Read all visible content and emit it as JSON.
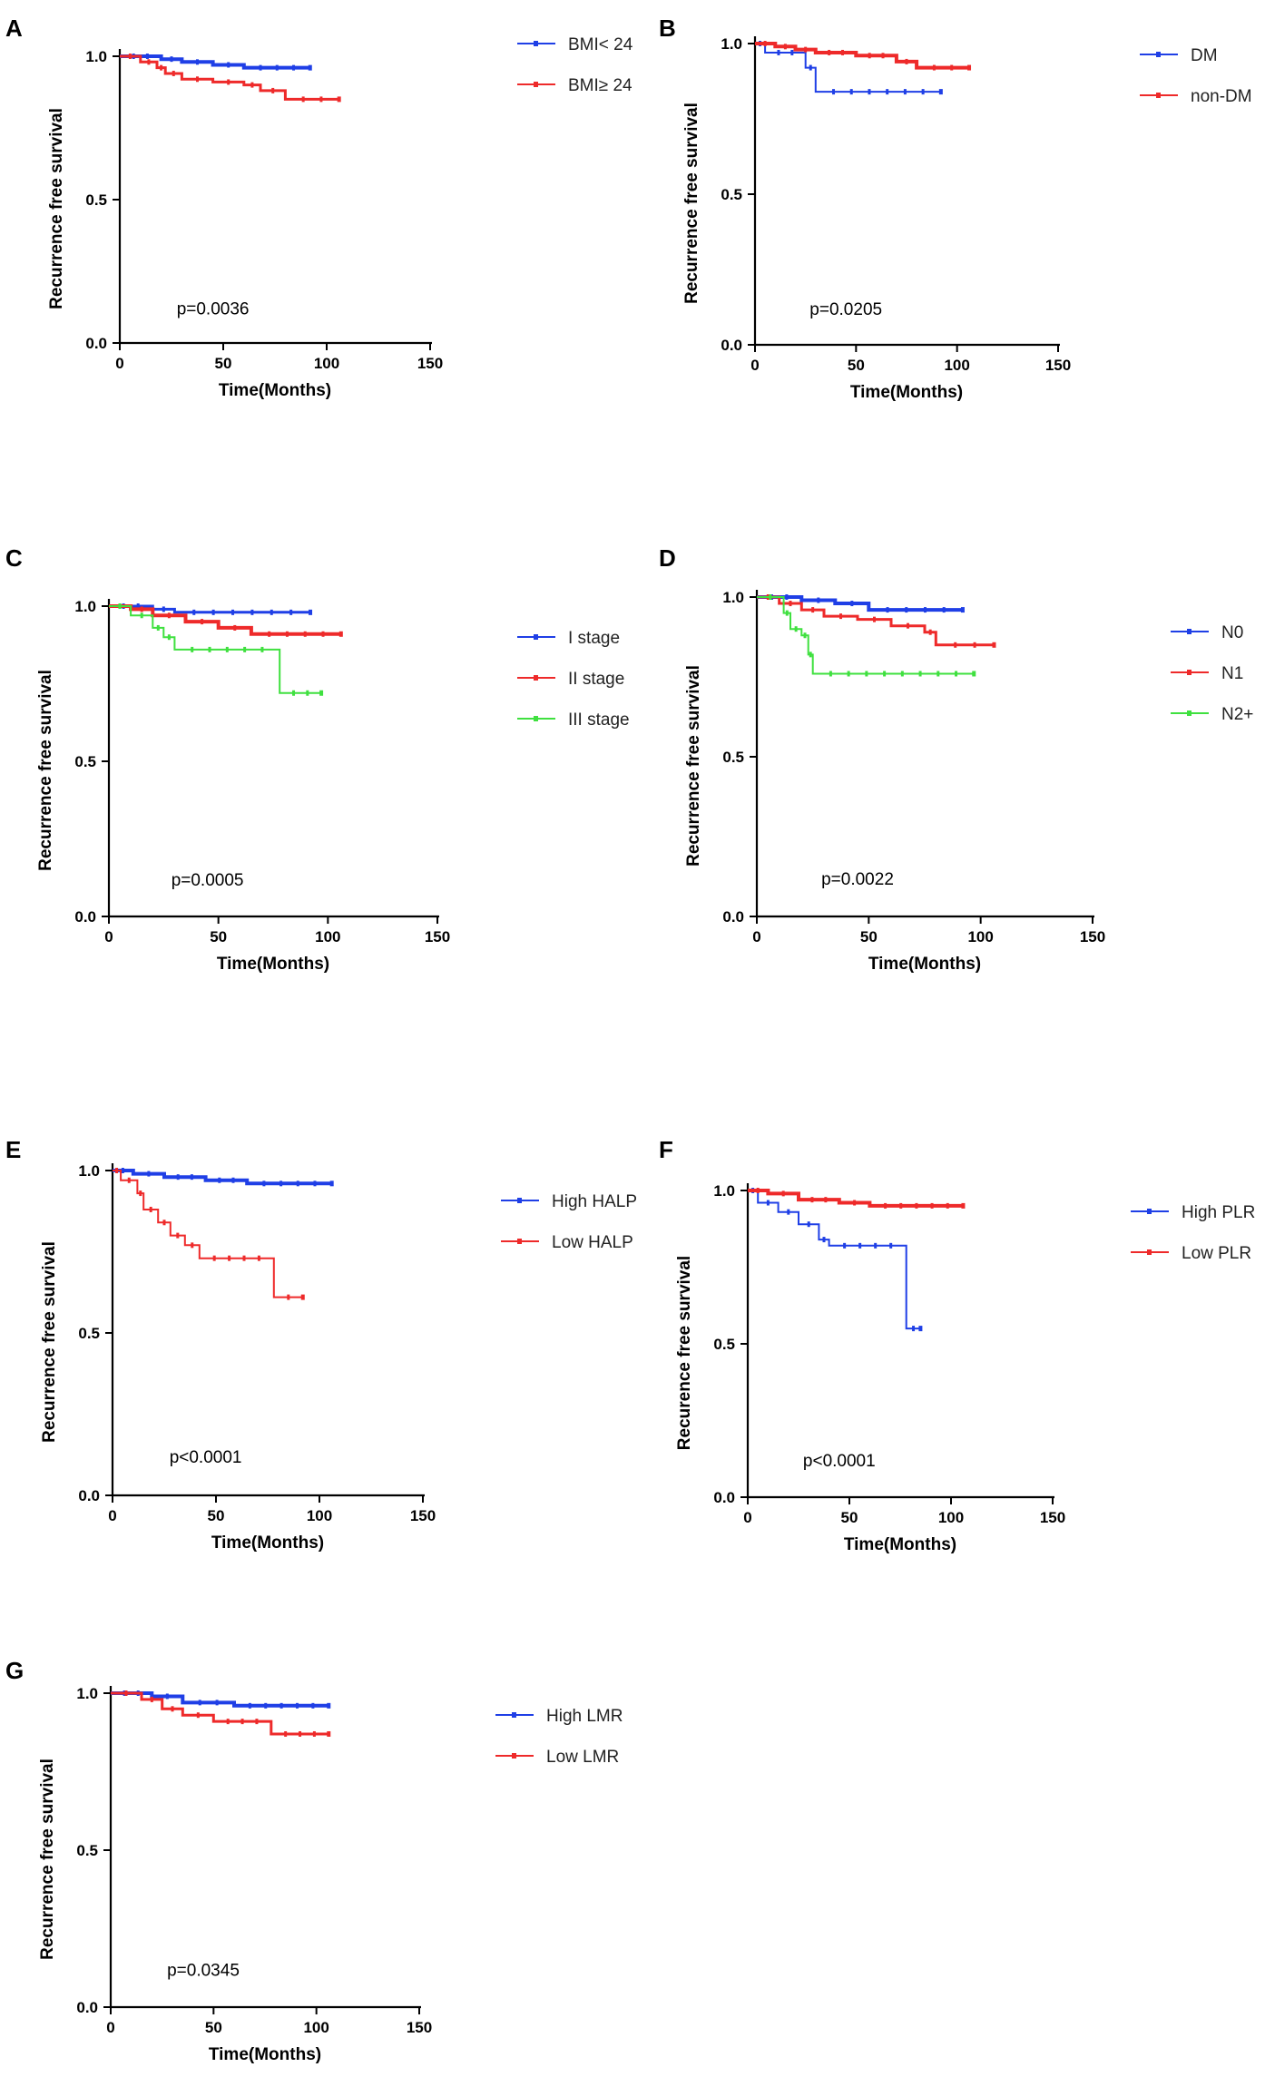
{
  "figure": {
    "xlabel": "Time(Months)",
    "ylabel": "Recurrence free survival"
  },
  "colors": {
    "blue": "#1f3fe6",
    "red": "#ee2a2a",
    "green": "#3fe03f",
    "axis": "#000000"
  },
  "chart_data": [
    {
      "type": "line",
      "panel": "A",
      "title": "A",
      "xlabel": "Time(Months)",
      "ylabel": "Recurrence free survival",
      "xlim": [
        0,
        150
      ],
      "ylim": [
        0,
        1.0
      ],
      "xticks": [
        "0",
        "50",
        "100",
        "150"
      ],
      "yticks": [
        "0.0",
        "0.5",
        "1.0"
      ],
      "p_value": "p=0.0036",
      "legend_position": "right",
      "series": [
        {
          "name": "BMI< 24",
          "color": "#1f3fe6",
          "width": 4,
          "x": [
            0,
            20,
            30,
            45,
            60,
            92
          ],
          "y": [
            1.0,
            0.99,
            0.98,
            0.97,
            0.96,
            0.96
          ]
        },
        {
          "name": "BMI≥ 24",
          "color": "#ee2a2a",
          "width": 3,
          "x": [
            0,
            10,
            18,
            22,
            30,
            45,
            60,
            68,
            80,
            106
          ],
          "y": [
            1.0,
            0.98,
            0.96,
            0.94,
            0.92,
            0.91,
            0.9,
            0.88,
            0.85,
            0.85
          ]
        }
      ]
    },
    {
      "type": "line",
      "panel": "B",
      "title": "B",
      "xlabel": "Time(Months)",
      "ylabel": "Recurrence free survival",
      "xlim": [
        0,
        150
      ],
      "ylim": [
        0,
        1.0
      ],
      "xticks": [
        "0",
        "50",
        "100",
        "150"
      ],
      "yticks": [
        "0.0",
        "0.5",
        "1.0"
      ],
      "p_value": "p=0.0205",
      "legend_position": "right",
      "series": [
        {
          "name": "DM",
          "color": "#1f3fe6",
          "width": 2,
          "x": [
            0,
            5,
            25,
            30,
            92
          ],
          "y": [
            1.0,
            0.97,
            0.92,
            0.84,
            0.84
          ]
        },
        {
          "name": "non-DM",
          "color": "#ee2a2a",
          "width": 4,
          "x": [
            0,
            10,
            20,
            30,
            50,
            70,
            80,
            106
          ],
          "y": [
            1.0,
            0.99,
            0.98,
            0.97,
            0.96,
            0.94,
            0.92,
            0.92
          ]
        }
      ]
    },
    {
      "type": "line",
      "panel": "C",
      "title": "C",
      "xlabel": "Time(Months)",
      "ylabel": "Recurrence free survival",
      "xlim": [
        0,
        150
      ],
      "ylim": [
        0,
        1.0
      ],
      "xticks": [
        "0",
        "50",
        "100",
        "150"
      ],
      "yticks": [
        "0.0",
        "0.5",
        "1.0"
      ],
      "p_value": "p=0.0005",
      "legend_position": "right",
      "series": [
        {
          "name": "I stage",
          "color": "#1f3fe6",
          "width": 3,
          "x": [
            0,
            20,
            30,
            92
          ],
          "y": [
            1.0,
            0.99,
            0.98,
            0.98
          ]
        },
        {
          "name": "II stage",
          "color": "#ee2a2a",
          "width": 4,
          "x": [
            0,
            10,
            20,
            35,
            50,
            65,
            106
          ],
          "y": [
            1.0,
            0.99,
            0.97,
            0.95,
            0.93,
            0.91,
            0.91
          ]
        },
        {
          "name": "III stage",
          "color": "#3fe03f",
          "width": 2,
          "x": [
            0,
            10,
            20,
            25,
            30,
            78,
            97
          ],
          "y": [
            1.0,
            0.97,
            0.93,
            0.9,
            0.86,
            0.72,
            0.72
          ]
        }
      ]
    },
    {
      "type": "line",
      "panel": "D",
      "title": "D",
      "xlabel": "Time(Months)",
      "ylabel": "Recurrence free survival",
      "xlim": [
        0,
        150
      ],
      "ylim": [
        0,
        1.0
      ],
      "xticks": [
        "0",
        "50",
        "100",
        "150"
      ],
      "yticks": [
        "0.0",
        "0.5",
        "1.0"
      ],
      "p_value": "p=0.0022",
      "legend_position": "right",
      "series": [
        {
          "name": "N0",
          "color": "#1f3fe6",
          "width": 4,
          "x": [
            0,
            20,
            35,
            50,
            92
          ],
          "y": [
            1.0,
            0.99,
            0.98,
            0.96,
            0.96
          ]
        },
        {
          "name": "N1",
          "color": "#ee2a2a",
          "width": 3,
          "x": [
            0,
            10,
            20,
            30,
            45,
            60,
            75,
            80,
            106
          ],
          "y": [
            1.0,
            0.98,
            0.96,
            0.94,
            0.93,
            0.91,
            0.89,
            0.85,
            0.85
          ]
        },
        {
          "name": "N2+",
          "color": "#3fe03f",
          "width": 2,
          "x": [
            0,
            12,
            15,
            20,
            23,
            25,
            97
          ],
          "y": [
            1.0,
            0.95,
            0.9,
            0.88,
            0.82,
            0.76,
            0.76
          ]
        }
      ]
    },
    {
      "type": "line",
      "panel": "E",
      "title": "E",
      "xlabel": "Time(Months)",
      "ylabel": "Recurrence free survival",
      "xlim": [
        0,
        150
      ],
      "ylim": [
        0,
        1.0
      ],
      "xticks": [
        "0",
        "50",
        "100",
        "150"
      ],
      "yticks": [
        "0.0",
        "0.5",
        "1.0"
      ],
      "p_value": "p<0.0001",
      "legend_position": "right",
      "series": [
        {
          "name": "High HALP",
          "color": "#1f3fe6",
          "width": 4,
          "x": [
            0,
            10,
            25,
            45,
            65,
            106
          ],
          "y": [
            1.0,
            0.99,
            0.98,
            0.97,
            0.96,
            0.96
          ]
        },
        {
          "name": "Low HALP",
          "color": "#ee2a2a",
          "width": 2,
          "x": [
            0,
            4,
            12,
            15,
            22,
            28,
            35,
            42,
            78,
            92
          ],
          "y": [
            1.0,
            0.97,
            0.93,
            0.88,
            0.84,
            0.8,
            0.77,
            0.73,
            0.61,
            0.61
          ]
        }
      ]
    },
    {
      "type": "line",
      "panel": "F",
      "title": "F",
      "xlabel": "Time(Months)",
      "ylabel": "Recurence free survival",
      "xlim": [
        0,
        150
      ],
      "ylim": [
        0,
        1.0
      ],
      "xticks": [
        "0",
        "50",
        "100",
        "150"
      ],
      "yticks": [
        "0.0",
        "0.5",
        "1.0"
      ],
      "p_value": "p<0.0001",
      "legend_position": "right",
      "series": [
        {
          "name": "High PLR",
          "color": "#1f3fe6",
          "width": 2,
          "x": [
            0,
            5,
            15,
            25,
            35,
            40,
            78,
            85
          ],
          "y": [
            1.0,
            0.96,
            0.93,
            0.89,
            0.84,
            0.82,
            0.55,
            0.55
          ]
        },
        {
          "name": "Low PLR",
          "color": "#ee2a2a",
          "width": 4,
          "x": [
            0,
            10,
            25,
            45,
            60,
            106
          ],
          "y": [
            1.0,
            0.99,
            0.97,
            0.96,
            0.95,
            0.95
          ]
        }
      ]
    },
    {
      "type": "line",
      "panel": "G",
      "title": "G",
      "xlabel": "Time(Months)",
      "ylabel": "Recurrence free survival",
      "xlim": [
        0,
        150
      ],
      "ylim": [
        0,
        1.0
      ],
      "xticks": [
        "0",
        "50",
        "100",
        "150"
      ],
      "yticks": [
        "0.0",
        "0.5",
        "1.0"
      ],
      "p_value": "p=0.0345",
      "legend_position": "right",
      "series": [
        {
          "name": "High LMR",
          "color": "#1f3fe6",
          "width": 4,
          "x": [
            0,
            20,
            35,
            60,
            106
          ],
          "y": [
            1.0,
            0.99,
            0.97,
            0.96,
            0.96
          ]
        },
        {
          "name": "Low LMR",
          "color": "#ee2a2a",
          "width": 3,
          "x": [
            0,
            15,
            25,
            35,
            50,
            78,
            106
          ],
          "y": [
            1.0,
            0.98,
            0.95,
            0.93,
            0.91,
            0.87,
            0.87
          ]
        }
      ]
    }
  ]
}
